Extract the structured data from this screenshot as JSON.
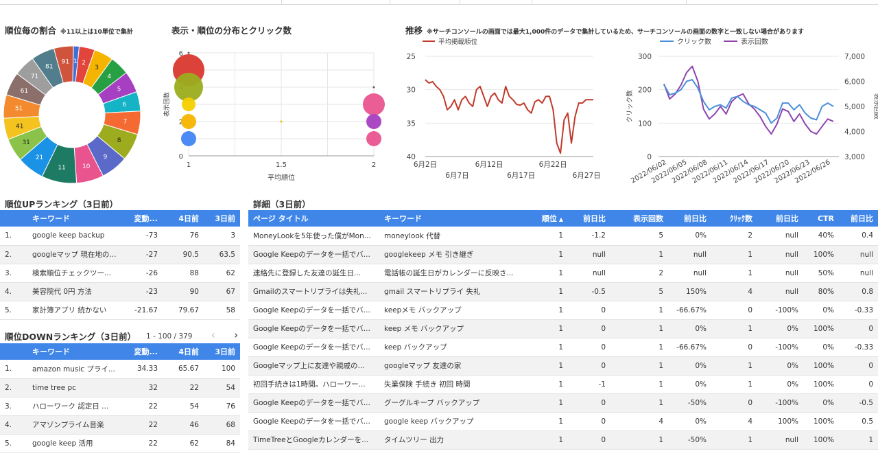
{
  "sections": {
    "ratio_title": "順位毎の割合",
    "ratio_note": "※11以上は10単位で集計",
    "dist_title": "表示・順位の分布とクリック数",
    "trend_title": "推移",
    "trend_note": "※サーチコンソールの画面では最大1,000件のデータで集計しているため、サーチコンソールの画面の数字と一致しない場合があります",
    "up_title": "順位UPランキング（3日前）",
    "down_title": "順位DOWNランキング（3日前）",
    "detail_title": "詳細（3日前）"
  },
  "donut": {
    "slices": [
      {
        "label": "1",
        "value": 1.5,
        "color": "#3f6fd8"
      },
      {
        "label": "2",
        "value": 4,
        "color": "#e2453c"
      },
      {
        "label": "3",
        "value": 5,
        "color": "#f5b400"
      },
      {
        "label": "4",
        "value": 5,
        "color": "#26a043"
      },
      {
        "label": "5",
        "value": 5.5,
        "color": "#a63fc1"
      },
      {
        "label": "6",
        "value": 5,
        "color": "#14b3c6"
      },
      {
        "label": "7",
        "value": 6,
        "color": "#f56a33"
      },
      {
        "label": "8",
        "value": 7,
        "color": "#9cac1e"
      },
      {
        "label": "9",
        "value": 7,
        "color": "#5b6ac8"
      },
      {
        "label": "10",
        "value": 7,
        "color": "#e9548f"
      },
      {
        "label": "11",
        "value": 9,
        "color": "#1d7a63"
      },
      {
        "label": "21",
        "value": 7,
        "color": "#1a93e6"
      },
      {
        "label": "31",
        "value": 6,
        "color": "#8bc34a"
      },
      {
        "label": "41",
        "value": 5.5,
        "color": "#f4c31f"
      },
      {
        "label": "51",
        "value": 6,
        "color": "#f48a2e"
      },
      {
        "label": "61",
        "value": 6,
        "color": "#8b6f6a"
      },
      {
        "label": "71",
        "value": 5.5,
        "color": "#9e9e9e"
      },
      {
        "label": "81",
        "value": 6,
        "color": "#517d8c"
      },
      {
        "label": "91",
        "value": 5,
        "color": "#d0533b"
      }
    ]
  },
  "bubble": {
    "xlabel": "平均順位",
    "ylabel": "表示回数",
    "xticks": [
      "1",
      "1.5",
      "2"
    ],
    "yticks": [
      "0",
      "2",
      "4",
      "6"
    ],
    "xlim": [
      1,
      2
    ],
    "ylim": [
      0,
      6
    ],
    "points": [
      {
        "x": 1,
        "y": 5,
        "r": 23,
        "color": "#d9382e"
      },
      {
        "x": 1,
        "y": 4,
        "r": 21,
        "color": "#9cac1e"
      },
      {
        "x": 1,
        "y": 3,
        "r": 10,
        "color": "#f5d000"
      },
      {
        "x": 1,
        "y": 2,
        "r": 11,
        "color": "#f5b400"
      },
      {
        "x": 1,
        "y": 1,
        "r": 11,
        "color": "#4285f4"
      },
      {
        "x": 1.5,
        "y": 2,
        "r": 1.5,
        "color": "#f5b400"
      },
      {
        "x": 2,
        "y": 3,
        "r": 16,
        "color": "#e9548f"
      },
      {
        "x": 2,
        "y": 2,
        "r": 11,
        "color": "#a63fc1"
      },
      {
        "x": 2,
        "y": 1,
        "r": 11,
        "color": "#e9548f"
      },
      {
        "x": 1,
        "y": 6,
        "r": 1.5,
        "color": "#555"
      },
      {
        "x": 2,
        "y": 4,
        "r": 1.5,
        "color": "#555"
      }
    ]
  },
  "chart_data": [
    {
      "type": "line",
      "legend": [
        "平均掲載順位"
      ],
      "ylim": [
        25,
        40
      ],
      "yticks": [
        "25",
        "30",
        "35",
        "40"
      ],
      "xticks_top": [
        "6月2日",
        "6月12日",
        "6月22日"
      ],
      "xticks_bottom": [
        "6月7日",
        "6月17日",
        "6月27日"
      ],
      "color": "#c0392b",
      "series": [
        {
          "name": "平均掲載順位",
          "values": [
            28.5,
            29,
            28.8,
            29.5,
            30,
            31,
            33,
            32.5,
            31.5,
            33,
            31.5,
            31,
            32,
            32.5,
            30,
            29.5,
            31,
            32.5,
            31,
            30.5,
            31.5,
            32,
            29.5,
            31,
            31.5,
            32.2,
            32.3,
            32,
            33,
            33.5,
            31.8,
            31.5,
            32,
            31,
            31,
            33,
            38,
            39.5,
            34.5,
            33.5,
            38,
            34,
            32,
            32,
            31.5,
            31.5,
            31.5
          ]
        }
      ]
    },
    {
      "type": "line",
      "legend": [
        "クリック数",
        "表示回数"
      ],
      "ylabel": "クリック数",
      "ylabel_right": "表示回数",
      "ylim": [
        0,
        300
      ],
      "ylim_right": [
        3000,
        7000
      ],
      "yticks": [
        "0",
        "100",
        "200",
        "300"
      ],
      "yticks_right": [
        "3,000",
        "4,000",
        "5,000",
        "6,000",
        "7,000"
      ],
      "xticks": [
        "2022/06/02",
        "2022/06/05",
        "2022/06/08",
        "2022/06/11",
        "2022/06/14",
        "2022/06/17",
        "2022/06/20",
        "2022/06/23",
        "2022/06/26"
      ],
      "series": [
        {
          "name": "クリック数",
          "color": "#4a90d9",
          "values": [
            215,
            185,
            190,
            200,
            225,
            230,
            205,
            165,
            140,
            150,
            155,
            145,
            175,
            180,
            165,
            155,
            150,
            140,
            130,
            100,
            115,
            160,
            160,
            140,
            155,
            130,
            115,
            110,
            150,
            160,
            150
          ]
        },
        {
          "name": "表示回数",
          "color": "#8e44ad",
          "values": [
            5900,
            5300,
            5500,
            5850,
            6350,
            6600,
            6000,
            4900,
            4500,
            4700,
            5000,
            4700,
            5200,
            5400,
            5500,
            5100,
            4900,
            4600,
            4200,
            3900,
            4300,
            4900,
            4800,
            4400,
            4700,
            4300,
            4000,
            3900,
            4200,
            4500,
            4400
          ]
        }
      ]
    }
  ],
  "up_table": {
    "headers": [
      "",
      "キーワード",
      "変動...",
      "4日前",
      "3日前"
    ],
    "rows": [
      [
        "1.",
        "google keep backup",
        "-73",
        "76",
        "3"
      ],
      [
        "2.",
        "googleマップ 現在地の...",
        "-27",
        "90.5",
        "63.5"
      ],
      [
        "3.",
        "検索順位チェックツー...",
        "-26",
        "88",
        "62"
      ],
      [
        "4.",
        "美容院代 0円 方法",
        "-23",
        "90",
        "67"
      ],
      [
        "5.",
        "家計簿アプリ 続かない",
        "-21.67",
        "79.67",
        "58"
      ]
    ]
  },
  "down_table": {
    "pager": "1 - 100 / 379",
    "headers": [
      "",
      "キーワード",
      "変動...",
      "4日前",
      "3日前"
    ],
    "rows": [
      [
        "1.",
        "amazon music プライ...",
        "34.33",
        "65.67",
        "100"
      ],
      [
        "2.",
        "time tree pc",
        "32",
        "22",
        "54"
      ],
      [
        "3.",
        "ハローワーク 認定日 ...",
        "22",
        "54",
        "76"
      ],
      [
        "4.",
        "アマゾンプライム音楽",
        "22",
        "46",
        "68"
      ],
      [
        "5.",
        "google keep 活用",
        "22",
        "62",
        "84"
      ]
    ]
  },
  "detail_table": {
    "headers": [
      "ページ タイトル",
      "キーワード",
      "順位",
      "前日比",
      "表示回数",
      "前日比",
      "ｸﾘｯｸ数",
      "前日比",
      "CTR",
      "前日比"
    ],
    "sort_icon": "▲",
    "rows": [
      [
        "MoneyLookを5年使った僕がMon...",
        "moneylook 代替",
        "1",
        "-1.2",
        "5",
        "0%",
        "2",
        "null",
        "40%",
        "0.4"
      ],
      [
        "Google Keepのデータを一括でバ...",
        "googlekeep メモ 引き継ぎ",
        "1",
        "null",
        "1",
        "null",
        "1",
        "null",
        "100%",
        "null"
      ],
      [
        "連絡先に登録した友達の誕生日...",
        "電話帳の誕生日がカレンダーに反映さ...",
        "1",
        "null",
        "2",
        "null",
        "1",
        "null",
        "50%",
        "null"
      ],
      [
        "Gmailのスマートリプライは失礼...",
        "gmail スマートリプライ 失礼",
        "1",
        "-0.5",
        "5",
        "150%",
        "4",
        "null",
        "80%",
        "0.8"
      ],
      [
        "Google Keepのデータを一括でバ...",
        "keepメモ バックアップ",
        "1",
        "0",
        "1",
        "-66.67%",
        "0",
        "-100%",
        "0%",
        "-0.33"
      ],
      [
        "Google Keepのデータを一括でバ...",
        "keep メモ バックアップ",
        "1",
        "0",
        "1",
        "0%",
        "1",
        "0%",
        "100%",
        "0"
      ],
      [
        "Google Keepのデータを一括でバ...",
        "keep バックアップ",
        "1",
        "0",
        "1",
        "-66.67%",
        "0",
        "-100%",
        "0%",
        "-0.33"
      ],
      [
        "Googleマップ上に友達や親戚の...",
        "googleマップ 友達の家",
        "1",
        "0",
        "1",
        "0%",
        "1",
        "0%",
        "100%",
        "0"
      ],
      [
        "初回手続きは1時間。ハローワー...",
        "失業保険 手続き 初回 時間",
        "1",
        "-1",
        "1",
        "0%",
        "1",
        "0%",
        "100%",
        "0"
      ],
      [
        "Google Keepのデータを一括でバ...",
        "グーグルキープ バックアップ",
        "1",
        "0",
        "1",
        "-50%",
        "0",
        "-100%",
        "0%",
        "-0.5"
      ],
      [
        "Google Keepのデータを一括でバ...",
        "google keep バックアップ",
        "1",
        "0",
        "4",
        "0%",
        "4",
        "100%",
        "100%",
        "0.5"
      ],
      [
        "TimeTreeとGoogleカレンダーを...",
        "タイムツリー 出力",
        "1",
        "0",
        "1",
        "-50%",
        "1",
        "null",
        "100%",
        "1"
      ]
    ]
  }
}
